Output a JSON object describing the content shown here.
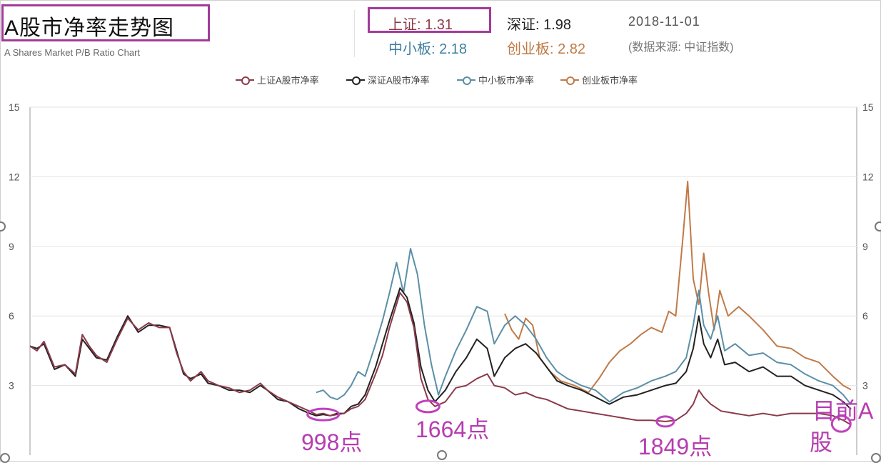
{
  "header": {
    "title": "A股市净率走势图",
    "subtitle": "A Shares Market P/B Ratio Chart",
    "stats": [
      {
        "label": "上证: 1.31",
        "color": "#8b3a4a"
      },
      {
        "label": "深证: 1.98",
        "color": "#222222"
      },
      {
        "label": "中小板: 2.18",
        "color": "#3f7fa0"
      },
      {
        "label": "创业板: 2.82",
        "color": "#c07a48"
      }
    ],
    "date": "2018-11-01",
    "source": "(数据来源: 中证指数)"
  },
  "legend": [
    {
      "label": "上证A股市净率",
      "color": "#8b3a4a"
    },
    {
      "label": "深证A股市净率",
      "color": "#222222"
    },
    {
      "label": "中小板市净率",
      "color": "#5b8fa6"
    },
    {
      "label": "创业板市净率",
      "color": "#c07a48"
    }
  ],
  "annotations": {
    "a1": "998点",
    "a2": "1664点",
    "a3": "1849点",
    "a4_line1": "目前A",
    "a4_line2": "股"
  },
  "chart_data": {
    "type": "line",
    "title": "A股市净率走势图",
    "ylim": [
      0,
      15
    ],
    "yticks": [
      "3",
      "6",
      "9",
      "12",
      "15"
    ],
    "grid": true,
    "legend_position": "top",
    "series": [
      {
        "name": "上证A股市净率",
        "color": "#8b3a4a",
        "points": [
          [
            0,
            4.7
          ],
          [
            10,
            4.5
          ],
          [
            20,
            4.9
          ],
          [
            35,
            3.8
          ],
          [
            50,
            3.9
          ],
          [
            65,
            3.5
          ],
          [
            75,
            5.2
          ],
          [
            85,
            4.7
          ],
          [
            95,
            4.3
          ],
          [
            110,
            4.0
          ],
          [
            125,
            5.0
          ],
          [
            140,
            5.9
          ],
          [
            155,
            5.4
          ],
          [
            170,
            5.7
          ],
          [
            185,
            5.5
          ],
          [
            200,
            5.5
          ],
          [
            210,
            4.4
          ],
          [
            220,
            3.6
          ],
          [
            230,
            3.2
          ],
          [
            245,
            3.6
          ],
          [
            255,
            3.2
          ],
          [
            270,
            3.0
          ],
          [
            285,
            2.9
          ],
          [
            300,
            2.7
          ],
          [
            315,
            2.8
          ],
          [
            330,
            3.1
          ],
          [
            340,
            2.8
          ],
          [
            355,
            2.5
          ],
          [
            370,
            2.3
          ],
          [
            385,
            2.1
          ],
          [
            400,
            1.9
          ],
          [
            410,
            1.75
          ],
          [
            420,
            1.8
          ],
          [
            430,
            1.7
          ],
          [
            440,
            1.75
          ],
          [
            450,
            1.8
          ],
          [
            460,
            2.0
          ],
          [
            470,
            2.1
          ],
          [
            480,
            2.4
          ],
          [
            495,
            3.5
          ],
          [
            505,
            4.3
          ],
          [
            515,
            5.5
          ],
          [
            530,
            7.0
          ],
          [
            540,
            6.6
          ],
          [
            550,
            5.5
          ],
          [
            560,
            3.3
          ],
          [
            570,
            2.4
          ],
          [
            580,
            2.1
          ],
          [
            595,
            2.3
          ],
          [
            610,
            2.9
          ],
          [
            625,
            3.0
          ],
          [
            640,
            3.3
          ],
          [
            655,
            3.5
          ],
          [
            665,
            3.0
          ],
          [
            680,
            2.9
          ],
          [
            695,
            2.6
          ],
          [
            710,
            2.7
          ],
          [
            725,
            2.5
          ],
          [
            740,
            2.4
          ],
          [
            755,
            2.2
          ],
          [
            770,
            2.0
          ],
          [
            790,
            1.9
          ],
          [
            810,
            1.8
          ],
          [
            830,
            1.7
          ],
          [
            850,
            1.6
          ],
          [
            870,
            1.5
          ],
          [
            890,
            1.5
          ],
          [
            910,
            1.45
          ],
          [
            925,
            1.5
          ],
          [
            940,
            1.8
          ],
          [
            950,
            2.2
          ],
          [
            958,
            2.8
          ],
          [
            965,
            2.5
          ],
          [
            975,
            2.2
          ],
          [
            990,
            1.9
          ],
          [
            1010,
            1.8
          ],
          [
            1030,
            1.7
          ],
          [
            1050,
            1.8
          ],
          [
            1070,
            1.7
          ],
          [
            1090,
            1.8
          ],
          [
            1110,
            1.8
          ],
          [
            1130,
            1.8
          ],
          [
            1150,
            1.7
          ],
          [
            1165,
            1.5
          ],
          [
            1176,
            1.31
          ]
        ]
      },
      {
        "name": "深证A股市净率",
        "color": "#222222",
        "points": [
          [
            0,
            4.7
          ],
          [
            10,
            4.6
          ],
          [
            20,
            4.8
          ],
          [
            35,
            3.7
          ],
          [
            50,
            3.9
          ],
          [
            65,
            3.4
          ],
          [
            75,
            5.0
          ],
          [
            85,
            4.6
          ],
          [
            95,
            4.2
          ],
          [
            110,
            4.1
          ],
          [
            125,
            5.1
          ],
          [
            140,
            6.0
          ],
          [
            155,
            5.3
          ],
          [
            170,
            5.6
          ],
          [
            185,
            5.6
          ],
          [
            200,
            5.5
          ],
          [
            210,
            4.5
          ],
          [
            220,
            3.5
          ],
          [
            230,
            3.3
          ],
          [
            245,
            3.5
          ],
          [
            255,
            3.1
          ],
          [
            270,
            3.0
          ],
          [
            285,
            2.8
          ],
          [
            300,
            2.8
          ],
          [
            315,
            2.7
          ],
          [
            330,
            3.0
          ],
          [
            340,
            2.8
          ],
          [
            355,
            2.4
          ],
          [
            370,
            2.3
          ],
          [
            385,
            2.0
          ],
          [
            400,
            1.8
          ],
          [
            410,
            1.7
          ],
          [
            420,
            1.75
          ],
          [
            430,
            1.7
          ],
          [
            440,
            1.8
          ],
          [
            450,
            1.8
          ],
          [
            460,
            2.1
          ],
          [
            470,
            2.2
          ],
          [
            480,
            2.6
          ],
          [
            495,
            3.8
          ],
          [
            505,
            4.8
          ],
          [
            515,
            5.8
          ],
          [
            530,
            7.2
          ],
          [
            540,
            6.8
          ],
          [
            550,
            5.7
          ],
          [
            560,
            3.8
          ],
          [
            570,
            2.8
          ],
          [
            580,
            2.3
          ],
          [
            595,
            2.8
          ],
          [
            610,
            3.6
          ],
          [
            625,
            4.2
          ],
          [
            640,
            5.0
          ],
          [
            655,
            4.6
          ],
          [
            665,
            3.4
          ],
          [
            680,
            4.2
          ],
          [
            695,
            4.6
          ],
          [
            710,
            4.8
          ],
          [
            725,
            4.4
          ],
          [
            740,
            3.8
          ],
          [
            755,
            3.2
          ],
          [
            770,
            3.0
          ],
          [
            790,
            2.8
          ],
          [
            810,
            2.5
          ],
          [
            830,
            2.2
          ],
          [
            850,
            2.5
          ],
          [
            870,
            2.6
          ],
          [
            890,
            2.8
          ],
          [
            910,
            3.0
          ],
          [
            925,
            3.1
          ],
          [
            940,
            3.6
          ],
          [
            950,
            4.6
          ],
          [
            958,
            6.0
          ],
          [
            965,
            4.8
          ],
          [
            975,
            4.2
          ],
          [
            985,
            5.0
          ],
          [
            995,
            3.9
          ],
          [
            1010,
            4.0
          ],
          [
            1030,
            3.6
          ],
          [
            1050,
            3.8
          ],
          [
            1070,
            3.4
          ],
          [
            1090,
            3.4
          ],
          [
            1110,
            3.0
          ],
          [
            1130,
            2.8
          ],
          [
            1150,
            2.6
          ],
          [
            1165,
            2.3
          ],
          [
            1176,
            1.98
          ]
        ]
      },
      {
        "name": "中小板市净率",
        "color": "#5b8fa6",
        "points": [
          [
            410,
            2.7
          ],
          [
            420,
            2.8
          ],
          [
            430,
            2.5
          ],
          [
            440,
            2.4
          ],
          [
            450,
            2.6
          ],
          [
            460,
            3.0
          ],
          [
            470,
            3.6
          ],
          [
            480,
            3.4
          ],
          [
            495,
            4.8
          ],
          [
            505,
            5.8
          ],
          [
            515,
            7.0
          ],
          [
            525,
            8.3
          ],
          [
            535,
            7.0
          ],
          [
            545,
            8.9
          ],
          [
            555,
            7.8
          ],
          [
            565,
            5.6
          ],
          [
            575,
            3.9
          ],
          [
            585,
            2.6
          ],
          [
            595,
            3.4
          ],
          [
            610,
            4.5
          ],
          [
            625,
            5.4
          ],
          [
            640,
            6.4
          ],
          [
            655,
            6.2
          ],
          [
            665,
            4.8
          ],
          [
            680,
            5.6
          ],
          [
            695,
            6.0
          ],
          [
            710,
            5.6
          ],
          [
            725,
            5.0
          ],
          [
            740,
            4.2
          ],
          [
            755,
            3.6
          ],
          [
            770,
            3.3
          ],
          [
            790,
            3.0
          ],
          [
            810,
            2.8
          ],
          [
            830,
            2.3
          ],
          [
            850,
            2.7
          ],
          [
            870,
            2.9
          ],
          [
            890,
            3.2
          ],
          [
            910,
            3.4
          ],
          [
            925,
            3.6
          ],
          [
            940,
            4.2
          ],
          [
            950,
            5.6
          ],
          [
            958,
            7.1
          ],
          [
            965,
            5.6
          ],
          [
            975,
            5.0
          ],
          [
            985,
            6.0
          ],
          [
            995,
            4.5
          ],
          [
            1010,
            4.8
          ],
          [
            1030,
            4.3
          ],
          [
            1050,
            4.4
          ],
          [
            1070,
            4.0
          ],
          [
            1090,
            3.9
          ],
          [
            1110,
            3.5
          ],
          [
            1130,
            3.2
          ],
          [
            1150,
            3.0
          ],
          [
            1165,
            2.6
          ],
          [
            1176,
            2.18
          ]
        ]
      },
      {
        "name": "创业板市净率",
        "color": "#c07a48",
        "points": [
          [
            680,
            6.1
          ],
          [
            690,
            5.4
          ],
          [
            700,
            5.0
          ],
          [
            710,
            5.9
          ],
          [
            720,
            5.6
          ],
          [
            730,
            4.2
          ],
          [
            745,
            3.6
          ],
          [
            760,
            3.2
          ],
          [
            780,
            3.0
          ],
          [
            800,
            2.7
          ],
          [
            815,
            3.3
          ],
          [
            830,
            4.0
          ],
          [
            845,
            4.5
          ],
          [
            860,
            4.8
          ],
          [
            875,
            5.2
          ],
          [
            890,
            5.5
          ],
          [
            905,
            5.3
          ],
          [
            915,
            6.2
          ],
          [
            925,
            6.0
          ],
          [
            935,
            9.3
          ],
          [
            942,
            11.8
          ],
          [
            950,
            7.6
          ],
          [
            958,
            6.5
          ],
          [
            965,
            8.7
          ],
          [
            972,
            7.0
          ],
          [
            980,
            5.4
          ],
          [
            988,
            7.1
          ],
          [
            1000,
            6.0
          ],
          [
            1015,
            6.4
          ],
          [
            1030,
            6.0
          ],
          [
            1050,
            5.4
          ],
          [
            1070,
            4.7
          ],
          [
            1090,
            4.6
          ],
          [
            1110,
            4.2
          ],
          [
            1130,
            4.0
          ],
          [
            1150,
            3.4
          ],
          [
            1165,
            3.0
          ],
          [
            1176,
            2.82
          ]
        ]
      }
    ]
  }
}
